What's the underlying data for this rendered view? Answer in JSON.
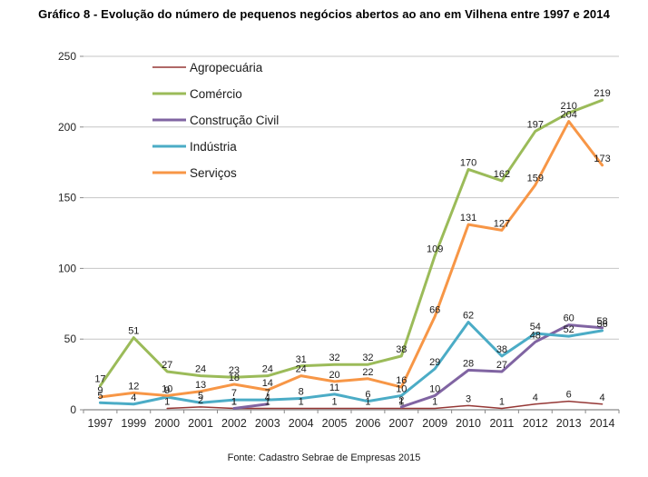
{
  "title": "Gráfico 8 - Evolução do número de pequenos negócios abertos ao ano em Vilhena entre 1997 e 2014",
  "footer": "Fonte: Cadastro Sebrae de Empresas 2015",
  "colors": {
    "gridline": "#C6C6C6",
    "axis": "#898989",
    "axis_text": "#262626",
    "data_label": "#1a1a1a",
    "legend_text": "#1a1a1a",
    "background": "#ffffff"
  },
  "chart_data": {
    "type": "line",
    "title": "Gráfico 8 - Evolução do número de pequenos negócios abertos ao ano em Vilhena entre 1997 e 2014",
    "source": "Fonte: Cadastro Sebrae de Empresas 2015",
    "categories": [
      "1997",
      "1999",
      "2000",
      "2001",
      "2002",
      "2003",
      "2004",
      "2005",
      "2006",
      "2007",
      "2009",
      "2010",
      "2011",
      "2012",
      "2013",
      "2014"
    ],
    "series": [
      {
        "name": "Agropecuária",
        "color": "#953735",
        "line_width": 1.5,
        "values": [
          null,
          null,
          1,
          2,
          1,
          1,
          1,
          1,
          1,
          1,
          1,
          3,
          1,
          4,
          6,
          4
        ]
      },
      {
        "name": "Comércio",
        "color": "#9BBB59",
        "line_width": 3,
        "values": [
          17,
          51,
          27,
          24,
          23,
          24,
          31,
          32,
          32,
          38,
          109,
          170,
          162,
          197,
          210,
          219
        ]
      },
      {
        "name": "Construção Civil",
        "color": "#8064A2",
        "line_width": 3,
        "values": [
          null,
          null,
          null,
          null,
          1,
          4,
          null,
          null,
          null,
          2,
          10,
          28,
          27,
          48,
          60,
          58
        ]
      },
      {
        "name": "Indústria",
        "color": "#4BACC6",
        "line_width": 3,
        "values": [
          5,
          4,
          9,
          5,
          7,
          7,
          8,
          11,
          6,
          10,
          29,
          62,
          38,
          54,
          52,
          56
        ]
      },
      {
        "name": "Serviços",
        "color": "#F79646",
        "line_width": 3,
        "values": [
          9,
          12,
          10,
          13,
          18,
          14,
          24,
          20,
          22,
          16,
          66,
          131,
          127,
          159,
          204,
          173
        ]
      }
    ],
    "xlabel": "",
    "ylabel": "",
    "ylim": [
      0,
      250
    ],
    "yticks": [
      0,
      50,
      100,
      150,
      200,
      250
    ],
    "grid": true,
    "data_labels": true,
    "legend_position": "inside-top-left"
  }
}
